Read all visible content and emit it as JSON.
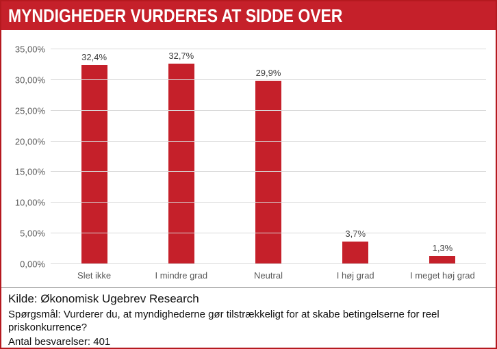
{
  "header": {
    "title": "MYNDIGHEDER VURDERES AT SIDDE OVER",
    "bg_color": "#c5202a",
    "text_color": "#ffffff"
  },
  "chart_data": {
    "type": "bar",
    "categories": [
      "Slet ikke",
      "I mindre grad",
      "Neutral",
      "I høj grad",
      "I meget høj grad"
    ],
    "values": [
      32.4,
      32.7,
      29.9,
      3.7,
      1.3
    ],
    "value_labels": [
      "32,4%",
      "32,7%",
      "29,9%",
      "3,7%",
      "1,3%"
    ],
    "title": "MYNDIGHEDER VURDERES AT SIDDE OVER",
    "xlabel": "",
    "ylabel": "",
    "ylim": [
      0,
      35
    ],
    "ytick_step": 5,
    "ytick_labels": [
      "0,00%",
      "5,00%",
      "10,00%",
      "15,00%",
      "20,00%",
      "25,00%",
      "30,00%",
      "35,00%"
    ],
    "bar_color": "#c5202a",
    "grid": true,
    "legend_position": "none"
  },
  "footer": {
    "source": "Kilde: Økonomisk Ugebrev Research",
    "question": "Spørgsmål: Vurderer du, at myndighederne gør tilstrækkeligt for at skabe betingelserne for reel priskonkurrence?",
    "responses": "Antal besvarelser: 401"
  }
}
